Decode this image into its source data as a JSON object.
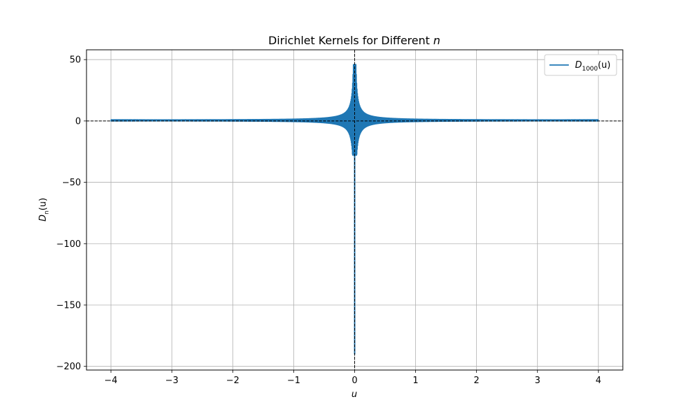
{
  "chart_data": {
    "type": "line",
    "title": "Dirichlet Kernels for Different ",
    "title_var": "n",
    "xlabel": "u",
    "ylabel_main": "D",
    "ylabel_sub": "n",
    "ylabel_tail": "(u)",
    "xlim": [
      -4.4,
      4.4
    ],
    "ylim": [
      -203,
      58
    ],
    "x_ticks": [
      {
        "value": -4,
        "label": "−4"
      },
      {
        "value": -3,
        "label": "−3"
      },
      {
        "value": -2,
        "label": "−2"
      },
      {
        "value": -1,
        "label": "−1"
      },
      {
        "value": 0,
        "label": "0"
      },
      {
        "value": 1,
        "label": "1"
      },
      {
        "value": 2,
        "label": "2"
      },
      {
        "value": 3,
        "label": "3"
      },
      {
        "value": 4,
        "label": "4"
      }
    ],
    "y_ticks": [
      {
        "value": 50,
        "label": "50"
      },
      {
        "value": 0,
        "label": "0"
      },
      {
        "value": -50,
        "label": "−50"
      },
      {
        "value": -100,
        "label": "−100"
      },
      {
        "value": -150,
        "label": "−150"
      },
      {
        "value": -200,
        "label": "−200"
      }
    ],
    "grid": true,
    "legend_position": "top-right",
    "reference_lines": {
      "horizontal_y": 0,
      "vertical_x": 0,
      "style": "dashed",
      "color": "#000000"
    },
    "series": [
      {
        "name_main": "D",
        "name_sub": "1000",
        "name_tail": "(u)",
        "color": "#1f77b4",
        "x_range": [
          -4,
          4
        ],
        "n": 1000,
        "envelope_note_points": [
          {
            "x": -4,
            "y": 0
          },
          {
            "x": -1,
            "y": 0
          },
          {
            "x": -0.3,
            "y": 3
          },
          {
            "x": -0.05,
            "y": 20
          },
          {
            "x": -0.01,
            "y": 46
          },
          {
            "x": 0,
            "y": -190
          },
          {
            "x": 0.01,
            "y": 46
          },
          {
            "x": 0.05,
            "y": 18
          },
          {
            "x": 0.3,
            "y": 3
          },
          {
            "x": 1,
            "y": 0
          },
          {
            "x": 4,
            "y": 0
          }
        ]
      }
    ]
  }
}
